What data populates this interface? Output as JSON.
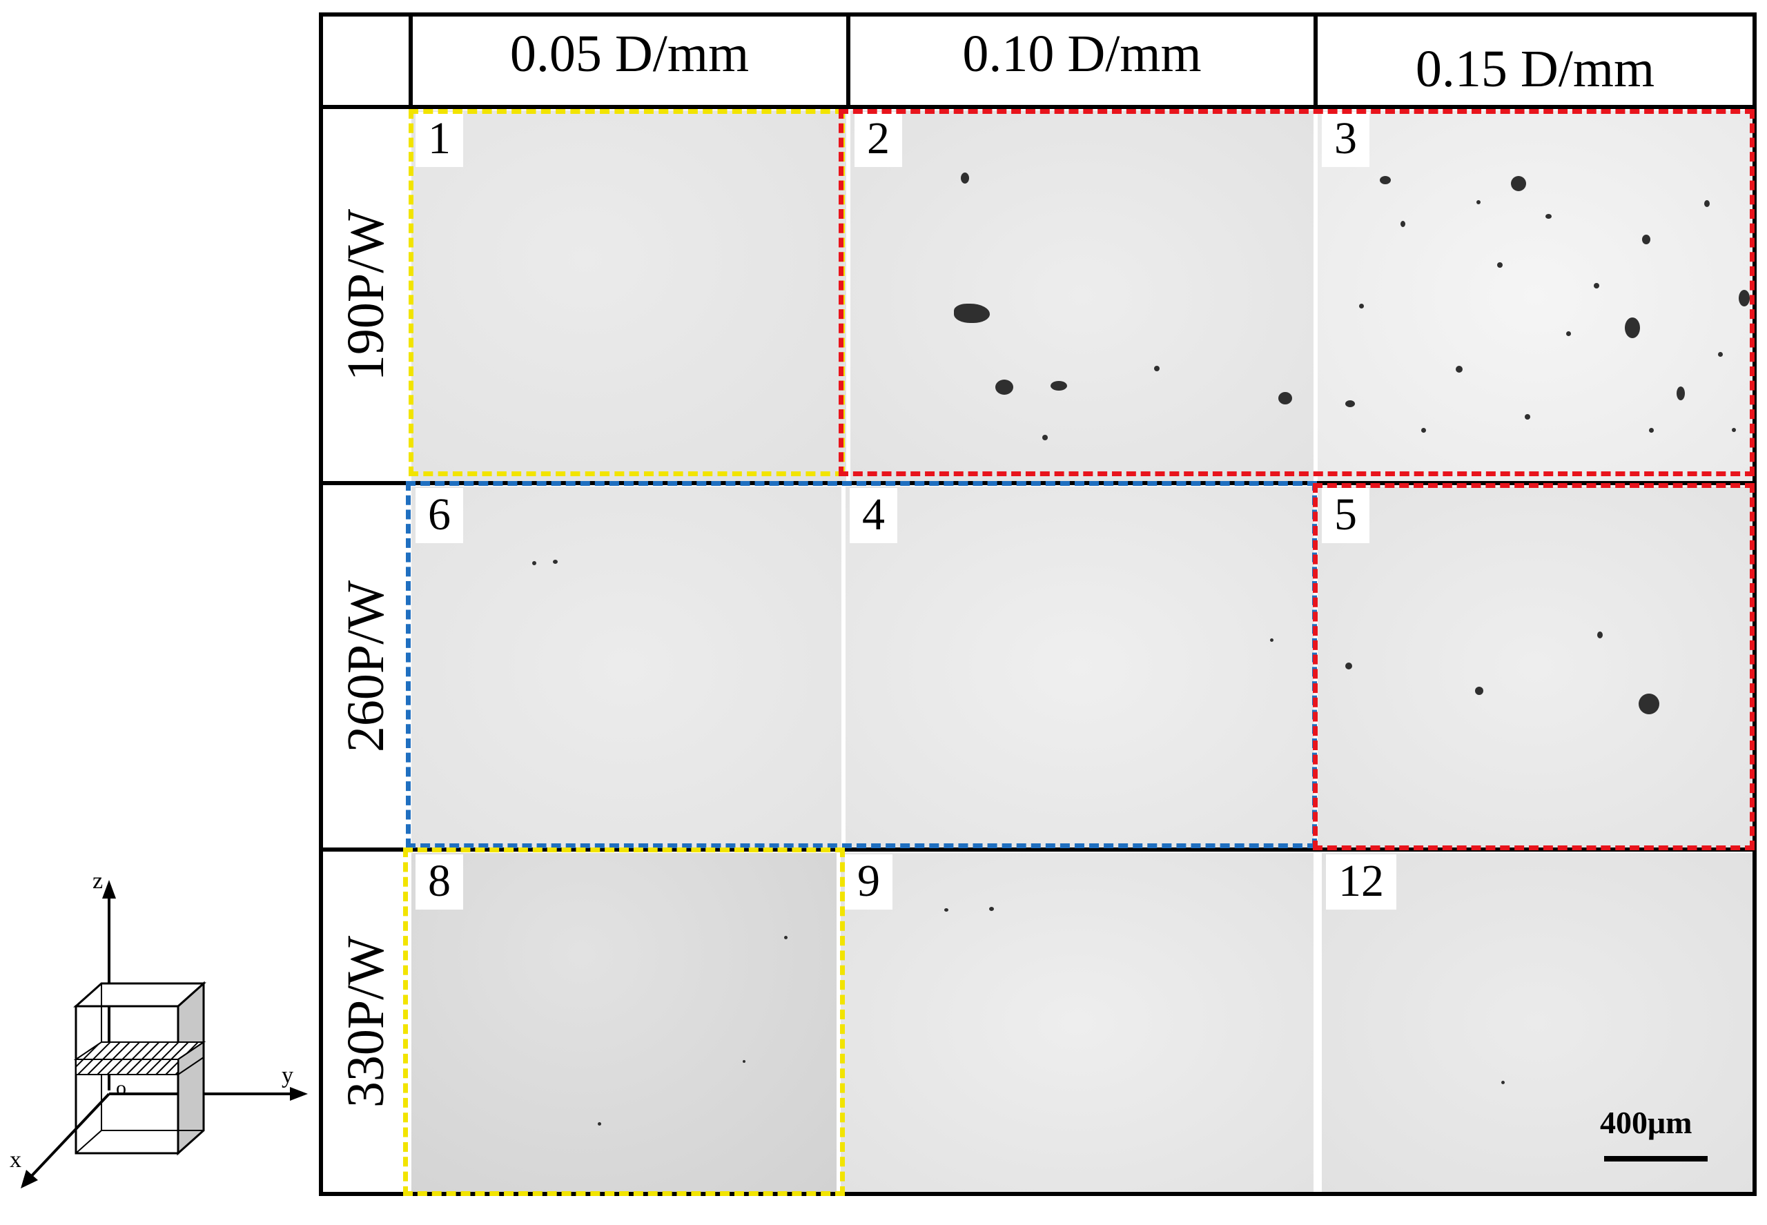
{
  "columns": [
    {
      "label": "0.05 D/mm"
    },
    {
      "label": "0.10 D/mm"
    },
    {
      "label": "0.15 D/mm"
    }
  ],
  "rows": [
    {
      "label": "190P/W"
    },
    {
      "label": "260P/W"
    },
    {
      "label": "330P/W"
    }
  ],
  "panels": [
    {
      "number": "1",
      "frame_color": "#f2e400"
    },
    {
      "number": "2",
      "frame_color": "#e8141c"
    },
    {
      "number": "3",
      "frame_color": "#e8141c"
    },
    {
      "number": "6",
      "frame_color": "#1f6fc0"
    },
    {
      "number": "4",
      "frame_color": "#1f6fc0"
    },
    {
      "number": "5",
      "frame_color": "#e8141c"
    },
    {
      "number": "8",
      "frame_color": "#f2e400"
    },
    {
      "number": "9",
      "frame_color": ""
    },
    {
      "number": "12",
      "frame_color": ""
    }
  ],
  "scale_bar": {
    "label": "400μm"
  },
  "axes": {
    "z": "z",
    "y": "y",
    "x": "x",
    "origin": "o"
  },
  "colors": {
    "yellow": "#f2e400",
    "red": "#e8141c",
    "blue": "#1f6fc0"
  }
}
